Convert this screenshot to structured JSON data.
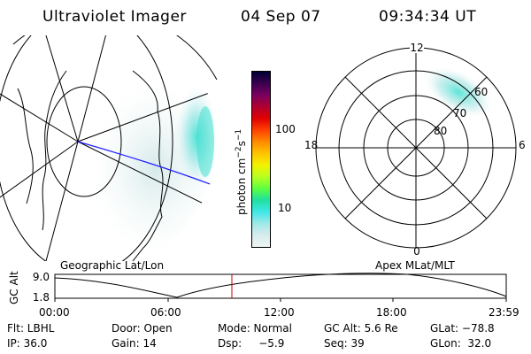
{
  "header": {
    "instrument": "Ultraviolet Imager",
    "date": "04 Sep 07",
    "time": "09:34:34 UT"
  },
  "colorbar": {
    "unit_label": "photon cm",
    "unit_exp1": "−2",
    "unit_s": "s",
    "unit_exp2": "−1",
    "ticks": [
      "100",
      "10"
    ],
    "colors": [
      "#000033",
      "#3a0050",
      "#7a0060",
      "#b00030",
      "#e00000",
      "#ff4000",
      "#ff8a00",
      "#ffc400",
      "#f2f200",
      "#b8ff20",
      "#5cff40",
      "#20e0a0",
      "#40e8e8",
      "#a0e8e8",
      "#d8ecec",
      "#eef4f4"
    ]
  },
  "left_panel": {
    "label": "Geographic Lat/Lon"
  },
  "right_panel": {
    "label": "Apex MLat/MLT",
    "mlt_labels": {
      "top": "12",
      "bottom": "0",
      "left": "18",
      "right": "6"
    },
    "lat_labels": [
      "60",
      "70",
      "80"
    ]
  },
  "timeline": {
    "axis_label": "GC Alt",
    "y_ticks": [
      "9.0",
      "1.8"
    ],
    "x_ticks": [
      "00:00",
      "06:00",
      "12:00",
      "18:00",
      "23:59"
    ],
    "marker_color": "#cc0000"
  },
  "info": {
    "row1": {
      "flt": "Flt: LBHL",
      "door": "Door: Open",
      "mode": "Mode: Normal",
      "gcalt": "GC Alt: 5.6 Re",
      "glat": "GLat: −78.8"
    },
    "row2": {
      "ip": "IP: 36.0",
      "gain": "Gain: 14",
      "dsp": "Dsp:     −5.9",
      "seq": "Seq: 39",
      "glon": "GLon:  32.0"
    }
  }
}
